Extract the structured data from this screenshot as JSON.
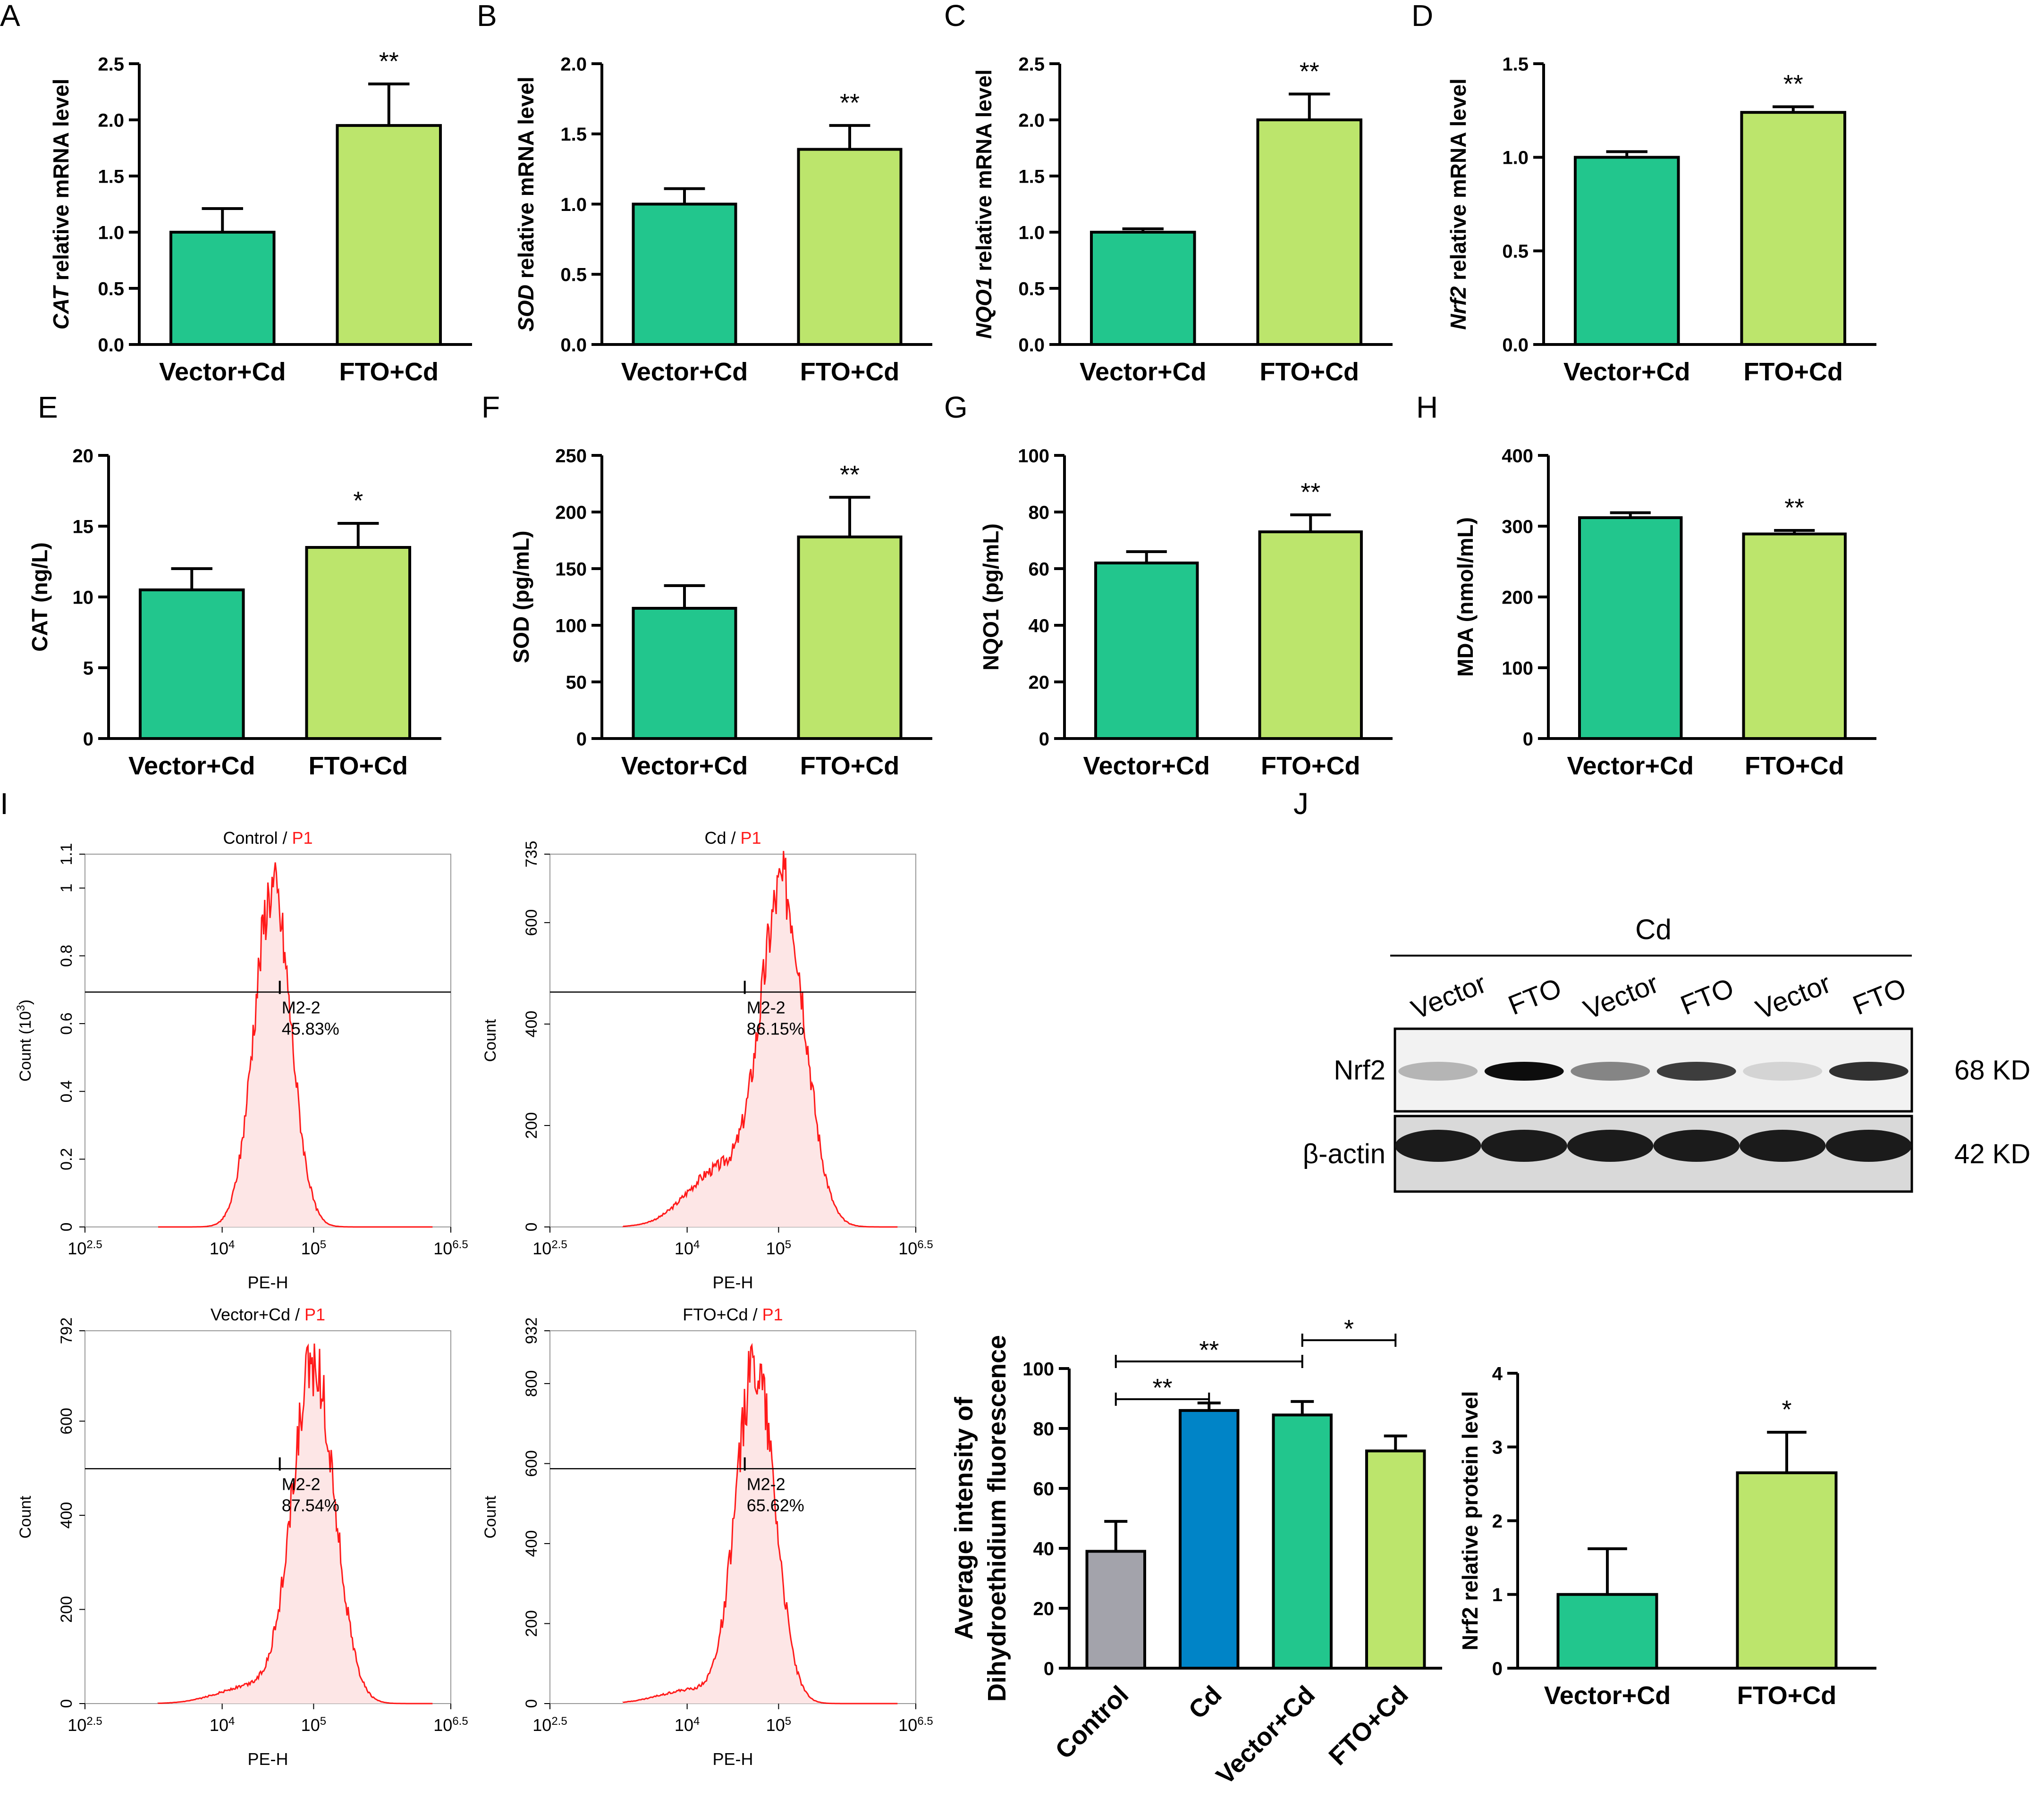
{
  "panels": {
    "A": {
      "letter": "A",
      "ylabel_gene": "CAT",
      "ylabel_rest": " relative mRNA level"
    },
    "B": {
      "letter": "B",
      "ylabel_gene": "SOD",
      "ylabel_rest": " relative mRNA level"
    },
    "C": {
      "letter": "C",
      "ylabel_gene": "NQO1",
      "ylabel_rest": " relative mRNA level"
    },
    "D": {
      "letter": "D",
      "ylabel_gene": "Nrf2",
      "ylabel_rest": " relative mRNA level"
    },
    "E": {
      "letter": "E"
    },
    "F": {
      "letter": "F"
    },
    "G": {
      "letter": "G"
    },
    "H": {
      "letter": "H"
    },
    "I": {
      "letter": "I"
    },
    "J": {
      "letter": "J"
    }
  },
  "colors": {
    "vector": "#22C68D",
    "fto": "#BCE56C",
    "control": "#A3A3AB",
    "cd": "#0084C7",
    "flow": "#FF1A1A",
    "flow_fill": "#FDE6E6"
  },
  "chart_data": [
    {
      "id": "A",
      "type": "bar",
      "categories": [
        "Vector+Cd",
        "FTO+Cd"
      ],
      "values": [
        1.0,
        1.95
      ],
      "errors": [
        0.21,
        0.37
      ],
      "ylim": [
        0,
        2.5
      ],
      "yticks": [
        0.0,
        0.5,
        1.0,
        1.5,
        2.0,
        2.5
      ],
      "ytick_labels": [
        "0.0",
        "0.5",
        "1.0",
        "1.5",
        "2.0",
        "2.5"
      ],
      "ylabel": "CAT relative mRNA level",
      "significance": "**"
    },
    {
      "id": "B",
      "type": "bar",
      "categories": [
        "Vector+Cd",
        "FTO+Cd"
      ],
      "values": [
        1.0,
        1.39
      ],
      "errors": [
        0.11,
        0.17
      ],
      "ylim": [
        0,
        2.0
      ],
      "yticks": [
        0.0,
        0.5,
        1.0,
        1.5,
        2.0
      ],
      "ytick_labels": [
        "0.0",
        "0.5",
        "1.0",
        "1.5",
        "2.0"
      ],
      "ylabel": "SOD relative mRNA level",
      "significance": "**"
    },
    {
      "id": "C",
      "type": "bar",
      "categories": [
        "Vector+Cd",
        "FTO+Cd"
      ],
      "values": [
        1.0,
        2.0
      ],
      "errors": [
        0.03,
        0.23
      ],
      "ylim": [
        0,
        2.5
      ],
      "yticks": [
        0.0,
        0.5,
        1.0,
        1.5,
        2.0,
        2.5
      ],
      "ytick_labels": [
        "0.0",
        "0.5",
        "1.0",
        "1.5",
        "2.0",
        "2.5"
      ],
      "ylabel": "NQO1 relative mRNA level",
      "significance": "**"
    },
    {
      "id": "D",
      "type": "bar",
      "categories": [
        "Vector+Cd",
        "FTO+Cd"
      ],
      "values": [
        1.0,
        1.24
      ],
      "errors": [
        0.03,
        0.03
      ],
      "ylim": [
        0,
        1.5
      ],
      "yticks": [
        0.0,
        0.5,
        1.0,
        1.5
      ],
      "ytick_labels": [
        "0.0",
        "0.5",
        "1.0",
        "1.5"
      ],
      "ylabel": "Nrf2 relative mRNA level",
      "significance": "**"
    },
    {
      "id": "E",
      "type": "bar",
      "categories": [
        "Vector+Cd",
        "FTO+Cd"
      ],
      "values": [
        10.5,
        13.5
      ],
      "errors": [
        1.5,
        1.7
      ],
      "ylim": [
        0,
        20
      ],
      "yticks": [
        0,
        5,
        10,
        15,
        20
      ],
      "ytick_labels": [
        "0",
        "5",
        "10",
        "15",
        "20"
      ],
      "ylabel": "CAT (ng/L)",
      "significance": "*"
    },
    {
      "id": "F",
      "type": "bar",
      "categories": [
        "Vector+Cd",
        "FTO+Cd"
      ],
      "values": [
        115,
        178
      ],
      "errors": [
        20,
        35
      ],
      "ylim": [
        0,
        250
      ],
      "yticks": [
        0,
        50,
        100,
        150,
        200,
        250
      ],
      "ytick_labels": [
        "0",
        "50",
        "100",
        "150",
        "200",
        "250"
      ],
      "ylabel": "SOD (pg/mL)",
      "significance": "**"
    },
    {
      "id": "G",
      "type": "bar",
      "categories": [
        "Vector+Cd",
        "FTO+Cd"
      ],
      "values": [
        62,
        73
      ],
      "errors": [
        4,
        6
      ],
      "ylim": [
        0,
        100
      ],
      "yticks": [
        0,
        20,
        40,
        60,
        80,
        100
      ],
      "ytick_labels": [
        "0",
        "20",
        "40",
        "60",
        "80",
        "100"
      ],
      "ylabel": "NQO1 (pg/mL)",
      "significance": "**"
    },
    {
      "id": "H",
      "type": "bar",
      "categories": [
        "Vector+Cd",
        "FTO+Cd"
      ],
      "values": [
        312,
        289
      ],
      "errors": [
        7,
        5
      ],
      "ylim": [
        0,
        400
      ],
      "yticks": [
        0,
        100,
        200,
        300,
        400
      ],
      "ytick_labels": [
        "0",
        "100",
        "200",
        "300",
        "400"
      ],
      "ylabel": "MDA (nmol/mL)",
      "significance": "**"
    },
    {
      "id": "DHE",
      "type": "bar",
      "categories": [
        "Control",
        "Cd",
        "Vector+Cd",
        "FTO+Cd"
      ],
      "values": [
        39,
        86,
        84.5,
        72.5
      ],
      "errors": [
        10,
        2.5,
        4.5,
        5
      ],
      "ylim": [
        0,
        100
      ],
      "yticks": [
        0,
        20,
        40,
        60,
        80,
        100
      ],
      "ytick_labels": [
        "0",
        "20",
        "40",
        "60",
        "80",
        "100"
      ],
      "ylabel_line1": "Average intensity of",
      "ylabel_line2": "Dihydroethidium fluorescence",
      "comparisons": [
        {
          "from": 0,
          "to": 1,
          "label": "**"
        },
        {
          "from": 0,
          "to": 2,
          "label": "**"
        },
        {
          "from": 2,
          "to": 3,
          "label": "*"
        }
      ]
    },
    {
      "id": "NRF2P",
      "type": "bar",
      "categories": [
        "Vector+Cd",
        "FTO+Cd"
      ],
      "values": [
        1.0,
        2.65
      ],
      "errors": [
        0.62,
        0.55
      ],
      "ylim": [
        0,
        4
      ],
      "yticks": [
        0,
        1,
        2,
        3,
        4
      ],
      "ytick_labels": [
        "0",
        "1",
        "2",
        "3",
        "4"
      ],
      "ylabel": "Nrf2 relative protein level",
      "significance": "*"
    },
    {
      "id": "flow1",
      "type": "area",
      "title_black": "Control / ",
      "title_red": "P1",
      "peak_log": 4.55,
      "sigma_log": 0.2,
      "ymax_label": "1.1",
      "yticks": [
        "0",
        "0.2",
        "0.4",
        "0.6",
        "0.8",
        "1",
        "1.1"
      ],
      "ytick_values": [
        0,
        0.2,
        0.4,
        0.6,
        0.8,
        1.0,
        1.1
      ],
      "ylim": [
        0,
        1.1
      ],
      "peak_value": 1.0,
      "ylabel": "Count (10",
      "ylabel_sup": "3",
      "ylabel_tail": ")",
      "gate_label": "M2-2",
      "gate_percent": "45.83%",
      "gate_log": 4.63,
      "xlabel": "PE-H",
      "xticks": [
        "10",
        "10",
        "10",
        "10"
      ],
      "xtick_sups": [
        "2.5",
        "4",
        "5",
        "6.5"
      ]
    },
    {
      "id": "flow2",
      "type": "area",
      "title_black": "Cd / ",
      "title_red": "P1",
      "peak_log": 5.05,
      "sigma_log": 0.24,
      "ymax_label": "735",
      "yticks": [
        "0",
        "200",
        "400",
        "600",
        "735"
      ],
      "ytick_values": [
        0,
        200,
        400,
        600,
        735
      ],
      "ylim": [
        0,
        735
      ],
      "peak_value": 660,
      "ylabel": "Count",
      "gate_label": "M2-2",
      "gate_percent": "86.15%",
      "gate_log": 4.63,
      "xlabel": "PE-H",
      "xticks": [
        "10",
        "10",
        "10",
        "10"
      ],
      "xtick_sups": [
        "2.5",
        "4",
        "5",
        "6.5"
      ]
    },
    {
      "id": "flow3",
      "type": "area",
      "title_black": "Vector+Cd / ",
      "title_red": "P1",
      "peak_log": 5.0,
      "sigma_log": 0.23,
      "ymax_label": "792",
      "yticks": [
        "0",
        "200",
        "400",
        "600",
        "792"
      ],
      "ytick_values": [
        0,
        200,
        400,
        600,
        792
      ],
      "ylim": [
        0,
        792
      ],
      "peak_value": 720,
      "ylabel": "Count",
      "gate_label": "M2-2",
      "gate_percent": "87.54%",
      "gate_log": 4.63,
      "xlabel": "PE-H",
      "xticks": [
        "10",
        "10",
        "10",
        "10"
      ],
      "xtick_sups": [
        "2.5",
        "4",
        "5",
        "6.5"
      ]
    },
    {
      "id": "flow4",
      "type": "area",
      "title_black": "FTO+Cd / ",
      "title_red": "P1",
      "peak_log": 4.75,
      "sigma_log": 0.21,
      "ymax_label": "932",
      "yticks": [
        "0",
        "200",
        "400",
        "600",
        "800",
        "932"
      ],
      "ytick_values": [
        0,
        200,
        400,
        600,
        800,
        932
      ],
      "ylim": [
        0,
        932
      ],
      "peak_value": 850,
      "ylabel": "Count",
      "gate_label": "M2-2",
      "gate_percent": "65.62%",
      "gate_log": 4.63,
      "xlabel": "PE-H",
      "xticks": [
        "10",
        "10",
        "10",
        "10"
      ],
      "xtick_sups": [
        "2.5",
        "4",
        "5",
        "6.5"
      ]
    }
  ],
  "blot": {
    "group_label": "Cd",
    "lanes": [
      "Vector",
      "FTO",
      "Vector",
      "FTO",
      "Vector",
      "FTO"
    ],
    "rows": [
      {
        "name": "Nrf2",
        "size": "68 KD"
      },
      {
        "name": "β-actin",
        "size": "42 KD"
      }
    ]
  }
}
